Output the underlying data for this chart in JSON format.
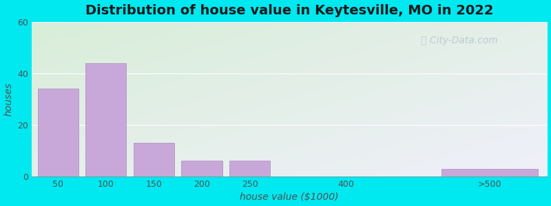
{
  "title": "Distribution of house value in Keytesville, MO in 2022",
  "xlabel": "house value ($1000)",
  "ylabel": "houses",
  "bar_labels": [
    "50",
    "100",
    "150",
    "200",
    "250",
    "400",
    ">500"
  ],
  "bar_heights": [
    34,
    44,
    13,
    6,
    6,
    0,
    3
  ],
  "bar_color": "#c8a8d8",
  "bar_edgecolor": "#b890c8",
  "ylim": [
    0,
    60
  ],
  "yticks": [
    0,
    20,
    40,
    60
  ],
  "bg_outer": "#00e8f0",
  "bg_top_left": "#d8eed8",
  "bg_bottom_right": "#f0f0fa",
  "title_fontsize": 14,
  "axis_label_fontsize": 10,
  "tick_fontsize": 9,
  "watermark_text": "City-Data.com",
  "watermark_color": "#b8c8d0",
  "bar_positions": [
    1,
    2,
    3,
    4,
    5,
    7,
    10
  ],
  "bar_width": 0.85,
  "xlim": [
    0.45,
    11.2
  ]
}
